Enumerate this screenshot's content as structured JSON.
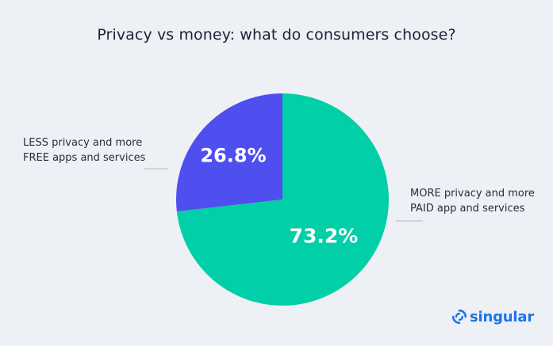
{
  "chart_data": {
    "type": "pie",
    "title": "Privacy vs money: what do consumers choose?",
    "slices": [
      {
        "label": "LESS privacy and more FREE apps and services",
        "label_lines": [
          "LESS privacy and more",
          "FREE apps and services"
        ],
        "value": 26.8,
        "value_label": "26.8%",
        "color": "#4F4FEF"
      },
      {
        "label": "MORE privacy and more PAID app and services",
        "label_lines": [
          "MORE privacy and more",
          "PAID app and services"
        ],
        "value": 73.2,
        "value_label": "73.2%",
        "color": "#00CFA8"
      }
    ],
    "legend": "callouts",
    "start_angle": "12 o'clock",
    "direction": "counterclockwise-first-slice"
  },
  "colors": {
    "background": "#EDF0F5",
    "leader_line": "#C5C9D2",
    "value_text": "#FFFFFF",
    "brand": "#1D73E8"
  },
  "brand": {
    "name": "singular",
    "icon": "singular-logo-icon"
  }
}
